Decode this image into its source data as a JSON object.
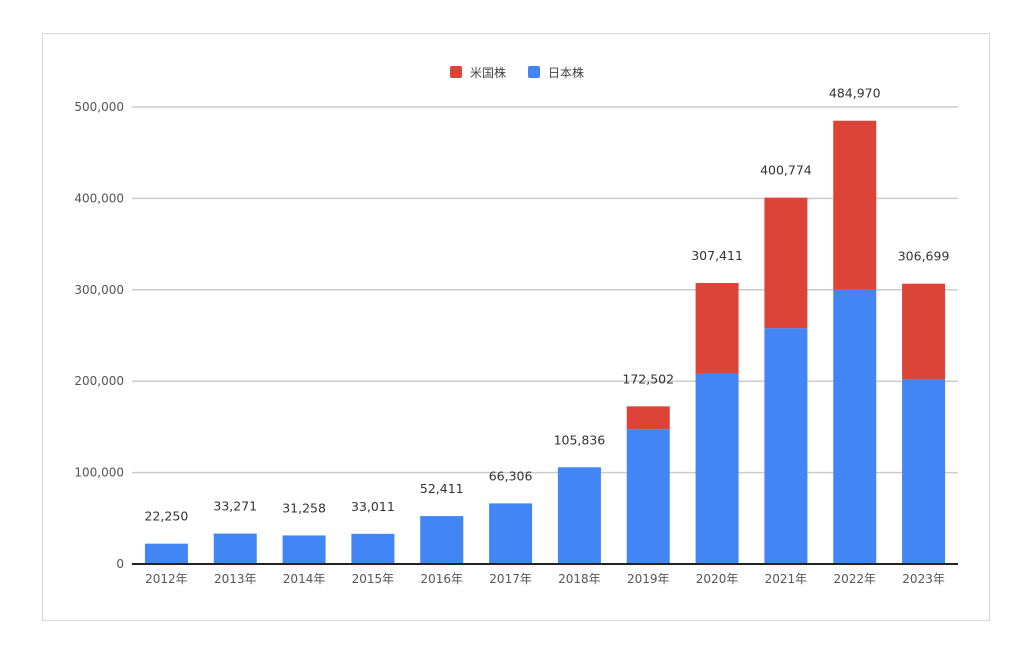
{
  "chart_data": {
    "type": "bar",
    "stacked": true,
    "categories": [
      "2012年",
      "2013年",
      "2014年",
      "2015年",
      "2016年",
      "2017年",
      "2018年",
      "2019年",
      "2020年",
      "2021年",
      "2022年",
      "2023年"
    ],
    "series": [
      {
        "name": "日本株",
        "color": "#4285f4",
        "values": [
          22250,
          33271,
          31258,
          33011,
          52411,
          66306,
          105836,
          147500,
          208000,
          258000,
          300000,
          202000
        ]
      },
      {
        "name": "米国株",
        "color": "#db4437",
        "values": [
          0,
          0,
          0,
          0,
          0,
          0,
          0,
          25002,
          99411,
          142774,
          184970,
          104699
        ]
      }
    ],
    "totals": [
      22250,
      33271,
      31258,
      33011,
      52411,
      66306,
      105836,
      172502,
      307411,
      400774,
      484970,
      306699
    ],
    "total_labels": [
      "22,250",
      "33,271",
      "31,258",
      "33,011",
      "52,411",
      "66,306",
      "105,836",
      "172,502",
      "307,411",
      "400,774",
      "484,970",
      "306,699"
    ],
    "y_ticks": [
      0,
      100000,
      200000,
      300000,
      400000,
      500000
    ],
    "y_tick_labels": [
      "0",
      "100,000",
      "200,000",
      "300,000",
      "400,000",
      "500,000"
    ],
    "ylim": [
      0,
      500000
    ],
    "grid": true,
    "legend_position": "top-center",
    "legend_order": [
      "米国株",
      "日本株"
    ]
  }
}
